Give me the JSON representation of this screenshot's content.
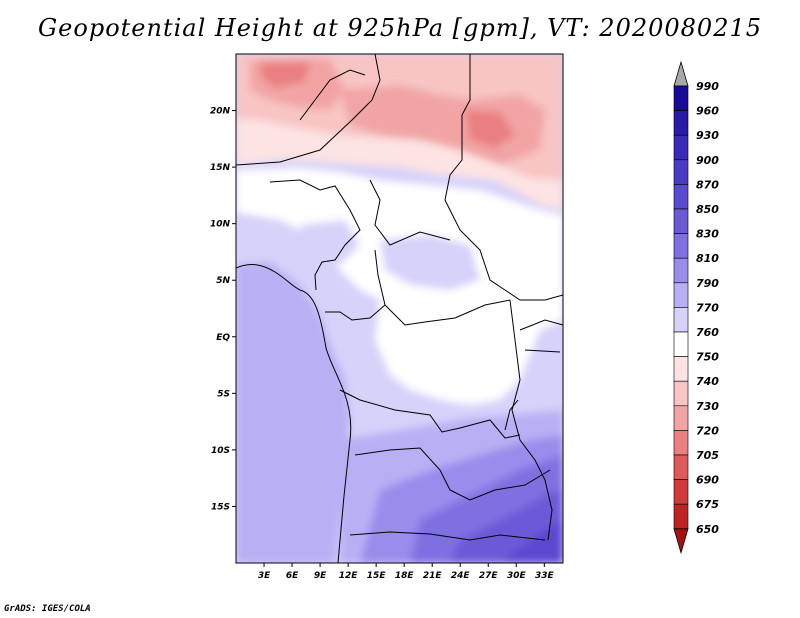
{
  "title": "Geopotential Height at 925hPa [gpm], VT: 2020080215",
  "footer": "GrADS: IGES/COLA",
  "map": {
    "projection": "lat-lon",
    "region": "Central Africa",
    "lat_range": [
      -20,
      25
    ],
    "lon_range": [
      0,
      35
    ],
    "lat_ticks": [
      {
        "value": 20,
        "label": "20N"
      },
      {
        "value": 15,
        "label": "15N"
      },
      {
        "value": 10,
        "label": "10N"
      },
      {
        "value": 5,
        "label": "5N"
      },
      {
        "value": 0,
        "label": "EQ"
      },
      {
        "value": -5,
        "label": "5S"
      },
      {
        "value": -10,
        "label": "10S"
      },
      {
        "value": -15,
        "label": "15S"
      }
    ],
    "lon_ticks": [
      {
        "value": 3,
        "label": "3E"
      },
      {
        "value": 6,
        "label": "6E"
      },
      {
        "value": 9,
        "label": "9E"
      },
      {
        "value": 12,
        "label": "12E"
      },
      {
        "value": 15,
        "label": "15E"
      },
      {
        "value": 18,
        "label": "18E"
      },
      {
        "value": 21,
        "label": "21E"
      },
      {
        "value": 24,
        "label": "24E"
      },
      {
        "value": 27,
        "label": "27E"
      },
      {
        "value": 30,
        "label": "30E"
      },
      {
        "value": 33,
        "label": "33E"
      }
    ]
  },
  "colorbar": {
    "levels": [
      "990",
      "960",
      "930",
      "900",
      "870",
      "850",
      "830",
      "810",
      "790",
      "770",
      "760",
      "750",
      "740",
      "730",
      "720",
      "705",
      "690",
      "675",
      "650"
    ],
    "colors": [
      "#1a0a9a",
      "#2a1aa8",
      "#3a2ab8",
      "#4a3ac6",
      "#5a4ad0",
      "#6a5ad8",
      "#7f6fe2",
      "#9a8cec",
      "#b8b0f4",
      "#d6d2fa",
      "#ffffff",
      "#fde3e3",
      "#f8c4c4",
      "#f2a4a4",
      "#ea8080",
      "#e05a5a",
      "#d03a3a",
      "#bf2424",
      "#a81010"
    ],
    "top_arrow_color": "#a8a8a8",
    "bottom_arrow_color": "#a81010"
  }
}
